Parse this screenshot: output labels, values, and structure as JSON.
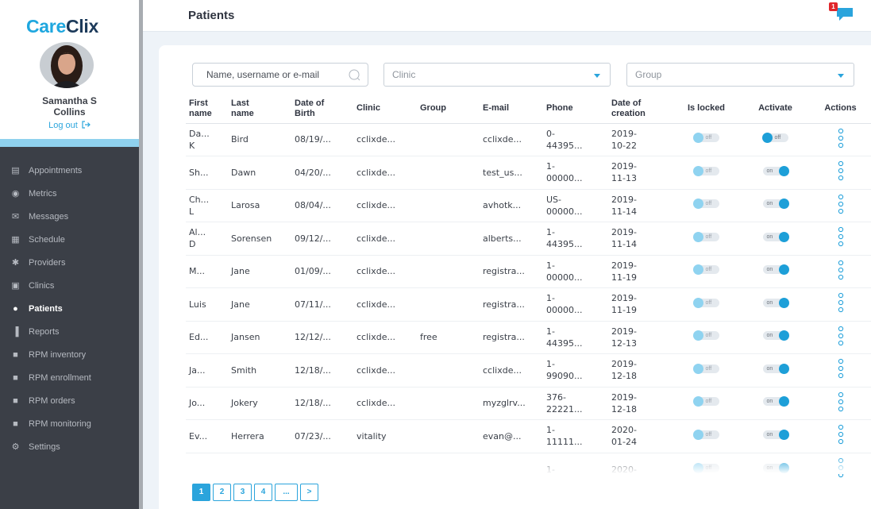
{
  "brand": {
    "part1": "Care",
    "part2": "Clix"
  },
  "user": {
    "name_line1": "Samantha S",
    "name_line2": "Collins",
    "logout_label": "Log out"
  },
  "nav": [
    {
      "label": "Appointments",
      "icon": "appointments-icon",
      "active": false
    },
    {
      "label": "Metrics",
      "icon": "metrics-icon",
      "active": false
    },
    {
      "label": "Messages",
      "icon": "messages-icon",
      "active": false
    },
    {
      "label": "Schedule",
      "icon": "schedule-icon",
      "active": false
    },
    {
      "label": "Providers",
      "icon": "providers-icon",
      "active": false
    },
    {
      "label": "Clinics",
      "icon": "clinics-icon",
      "active": false
    },
    {
      "label": "Patients",
      "icon": "patients-icon",
      "active": true
    },
    {
      "label": "Reports",
      "icon": "reports-icon",
      "active": false
    },
    {
      "label": "RPM inventory",
      "icon": "rpm-inventory-icon",
      "active": false
    },
    {
      "label": "RPM enrollment",
      "icon": "rpm-enrollment-icon",
      "active": false
    },
    {
      "label": "RPM orders",
      "icon": "rpm-orders-icon",
      "active": false
    },
    {
      "label": "RPM monitoring",
      "icon": "rpm-monitoring-icon",
      "active": false
    },
    {
      "label": "Settings",
      "icon": "settings-icon",
      "active": false
    }
  ],
  "header": {
    "title": "Patients",
    "notification_count": "1"
  },
  "filters": {
    "search_placeholder": "Name, username or e-mail",
    "clinic_placeholder": "Clinic",
    "group_placeholder": "Group"
  },
  "table": {
    "columns": [
      "First\nname",
      "Last\nname",
      "Date of\nBirth",
      "Clinic",
      "Group",
      "E-mail",
      "Phone",
      "Date of\ncreation",
      "Is locked",
      "Activate",
      "Actions"
    ],
    "rows": [
      {
        "first": "Da...\nK",
        "last": "Bird",
        "dob": "08/19/...",
        "clinic": "cclixde...",
        "group": "",
        "email": "cclixde...",
        "phone": "0-\n44395...",
        "created": "2019-\n10-22",
        "locked": "off",
        "activate": "off"
      },
      {
        "first": "Sh...",
        "last": "Dawn",
        "dob": "04/20/...",
        "clinic": "cclixde...",
        "group": "",
        "email": "test_us...",
        "phone": "1-\n00000...",
        "created": "2019-\n11-13",
        "locked": "off",
        "activate": "on"
      },
      {
        "first": "Ch...\nL",
        "last": "Larosa",
        "dob": "08/04/...",
        "clinic": "cclixde...",
        "group": "",
        "email": "avhotk...",
        "phone": "US-\n00000...",
        "created": "2019-\n11-14",
        "locked": "off",
        "activate": "on"
      },
      {
        "first": "Al...\nD",
        "last": "Sorensen",
        "dob": "09/12/...",
        "clinic": "cclixde...",
        "group": "",
        "email": "alberts...",
        "phone": "1-\n44395...",
        "created": "2019-\n11-14",
        "locked": "off",
        "activate": "on"
      },
      {
        "first": "M...",
        "last": "Jane",
        "dob": "01/09/...",
        "clinic": "cclixde...",
        "group": "",
        "email": "registra...",
        "phone": "1-\n00000...",
        "created": "2019-\n11-19",
        "locked": "off",
        "activate": "on"
      },
      {
        "first": "Luis",
        "last": "Jane",
        "dob": "07/11/...",
        "clinic": "cclixde...",
        "group": "",
        "email": "registra...",
        "phone": "1-\n00000...",
        "created": "2019-\n11-19",
        "locked": "off",
        "activate": "on"
      },
      {
        "first": "Ed...",
        "last": "Jansen",
        "dob": "12/12/...",
        "clinic": "cclixde...",
        "group": "free",
        "email": "registra...",
        "phone": "1-\n44395...",
        "created": "2019-\n12-13",
        "locked": "off",
        "activate": "on"
      },
      {
        "first": "Ja...",
        "last": "Smith",
        "dob": "12/18/...",
        "clinic": "cclixde...",
        "group": "",
        "email": "cclixde...",
        "phone": "1-\n99090...",
        "created": "2019-\n12-18",
        "locked": "off",
        "activate": "on"
      },
      {
        "first": "Jo...",
        "last": "Jokery",
        "dob": "12/18/...",
        "clinic": "cclixde...",
        "group": "",
        "email": "myzglrv...",
        "phone": "376-\n22221...",
        "created": "2019-\n12-18",
        "locked": "off",
        "activate": "on"
      },
      {
        "first": "Ev...",
        "last": "Herrera",
        "dob": "07/23/...",
        "clinic": "vitality",
        "group": "",
        "email": "evan@...",
        "phone": "1-\n11111...",
        "created": "2020-\n01-24",
        "locked": "off",
        "activate": "on"
      },
      {
        "first": "",
        "last": "",
        "dob": "",
        "clinic": "",
        "group": "",
        "email": "",
        "phone": "1-",
        "created": "2020-",
        "locked": "off",
        "activate": "on"
      }
    ],
    "toggle_labels": {
      "off": "off",
      "on": "on"
    }
  },
  "pagination": {
    "pages": [
      "1",
      "2",
      "3",
      "4",
      "..."
    ],
    "active": "1",
    "next": ">"
  },
  "colors": {
    "accent": "#2aa4dc",
    "sidebar": "#3b3f47",
    "badge": "#e0262b"
  }
}
